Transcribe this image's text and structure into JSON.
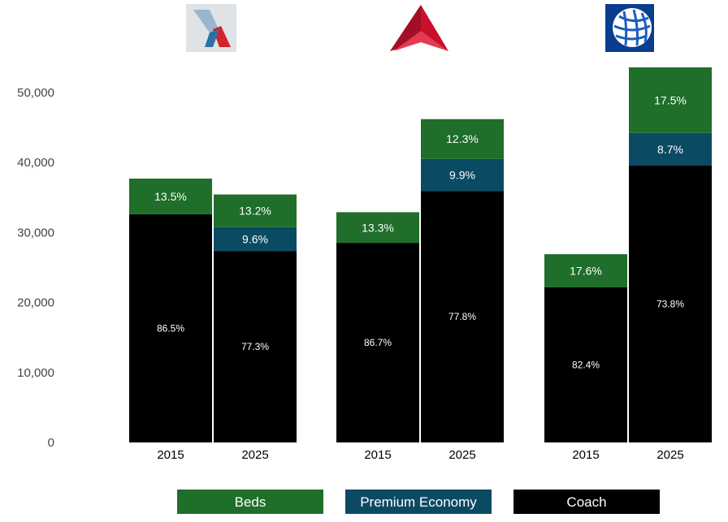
{
  "chart_data": {
    "type": "bar",
    "stacked": true,
    "ylim": [
      0,
      50000
    ],
    "yticks": [
      "0",
      "10,000",
      "20,000",
      "30,000",
      "40,000",
      "50,000"
    ],
    "grid": false,
    "legend_position": "bottom",
    "colors": {
      "Beds": "#1f6e2a",
      "Premium Economy": "#0b4a63",
      "Coach": "#000000"
    },
    "series_order": [
      "Coach",
      "Premium Economy",
      "Beds"
    ],
    "groups": [
      {
        "logo": "american-airlines-logo",
        "bars": [
          {
            "category": "2015",
            "total": 37700,
            "segments": [
              {
                "series": "Coach",
                "label": "86.5%",
                "share": 86.5
              },
              {
                "series": "Beds",
                "label": "13.5%",
                "share": 13.5
              }
            ]
          },
          {
            "category": "2025",
            "total": 35400,
            "segments": [
              {
                "series": "Coach",
                "label": "77.3%",
                "share": 77.3
              },
              {
                "series": "Premium Economy",
                "label": "9.6%",
                "share": 9.6
              },
              {
                "series": "Beds",
                "label": "13.2%",
                "share": 13.2
              }
            ]
          }
        ]
      },
      {
        "logo": "delta-logo",
        "bars": [
          {
            "category": "2015",
            "total": 32900,
            "segments": [
              {
                "series": "Coach",
                "label": "86.7%",
                "share": 86.7
              },
              {
                "series": "Beds",
                "label": "13.3%",
                "share": 13.3
              }
            ]
          },
          {
            "category": "2025",
            "total": 46200,
            "segments": [
              {
                "series": "Coach",
                "label": "77.8%",
                "share": 77.8
              },
              {
                "series": "Premium Economy",
                "label": "9.9%",
                "share": 9.9
              },
              {
                "series": "Beds",
                "label": "12.3%",
                "share": 12.3
              }
            ]
          }
        ]
      },
      {
        "logo": "united-logo",
        "bars": [
          {
            "category": "2015",
            "total": 26900,
            "segments": [
              {
                "series": "Coach",
                "label": "82.4%",
                "share": 82.4
              },
              {
                "series": "Beds",
                "label": "17.6%",
                "share": 17.6
              }
            ]
          },
          {
            "category": "2025",
            "total": 53600,
            "segments": [
              {
                "series": "Coach",
                "label": "73.8%",
                "share": 73.8
              },
              {
                "series": "Premium Economy",
                "label": "8.7%",
                "share": 8.7
              },
              {
                "series": "Beds",
                "label": "17.5%",
                "share": 17.5
              }
            ]
          }
        ]
      }
    ],
    "legend": [
      "Beds",
      "Premium Economy",
      "Coach"
    ]
  }
}
